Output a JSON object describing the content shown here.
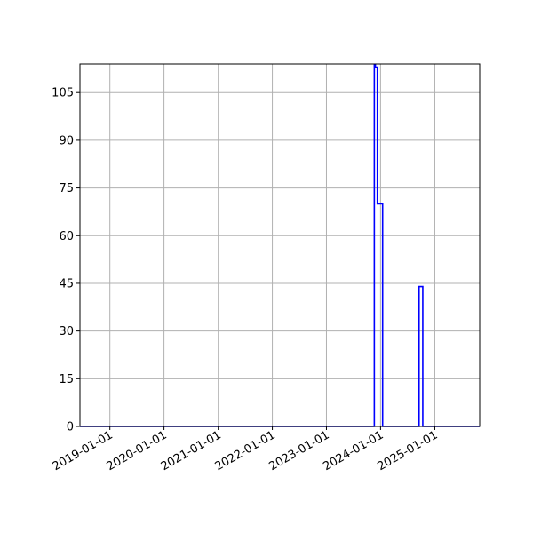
{
  "chart_data": {
    "type": "line",
    "title": "",
    "xlabel": "",
    "ylabel": "",
    "x_axis_type": "date",
    "xlim": [
      "2018-06-13",
      "2025-10-31"
    ],
    "ylim": [
      0,
      114
    ],
    "grid": true,
    "x_tick_labels": [
      "2019-01-01",
      "2020-01-01",
      "2021-01-01",
      "2022-01-01",
      "2023-01-01",
      "2024-01-01",
      "2025-01-01"
    ],
    "y_tick_labels": [
      "0",
      "15",
      "30",
      "45",
      "60",
      "75",
      "90",
      "105"
    ],
    "y_ticks": [
      0,
      15,
      30,
      45,
      60,
      75,
      90,
      105
    ],
    "series": [
      {
        "color": "#0000ff",
        "points": [
          {
            "x": "2018-06-13",
            "y": 0
          },
          {
            "x": "2023-11-20",
            "y": 0
          },
          {
            "x": "2023-11-20",
            "y": 114
          },
          {
            "x": "2023-11-27",
            "y": 114
          },
          {
            "x": "2023-11-27",
            "y": 113
          },
          {
            "x": "2023-12-10",
            "y": 113
          },
          {
            "x": "2023-12-10",
            "y": 70
          },
          {
            "x": "2024-01-15",
            "y": 70
          },
          {
            "x": "2024-01-15",
            "y": 0
          },
          {
            "x": "2024-09-17",
            "y": 0
          },
          {
            "x": "2024-09-17",
            "y": 44
          },
          {
            "x": "2024-10-12",
            "y": 44
          },
          {
            "x": "2024-10-12",
            "y": 0
          },
          {
            "x": "2025-10-31",
            "y": 0
          }
        ]
      }
    ]
  }
}
